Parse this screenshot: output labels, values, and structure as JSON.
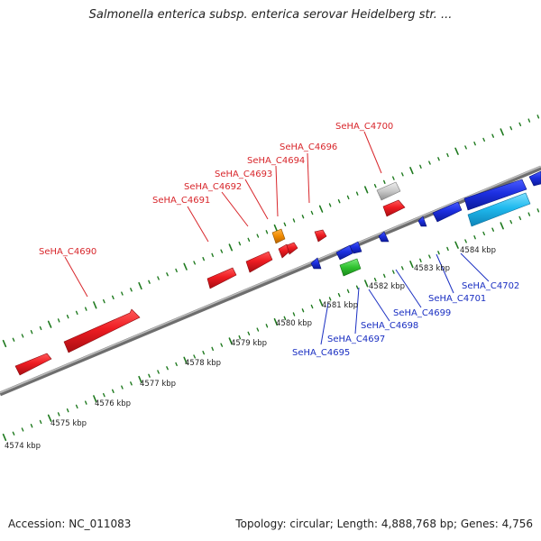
{
  "header": {
    "title": "Salmonella enterica subsp. enterica serovar Heidelberg str. ..."
  },
  "footer": {
    "accession": "Accession: NC_011083",
    "summary": "Topology: circular; Length: 4,888,768 bp; Genes: 4,756"
  },
  "colors": {
    "forward_gene": "#e8191f",
    "reverse_gene": "#1c2fe0",
    "reverse_gene_light": "#1fb9ee",
    "pseudo_gene": "#c8c8c8",
    "orange_gene": "#f08a00",
    "green_gene": "#2fc22f",
    "backbone": "#8c8c8c",
    "tick": "#1f7a1f",
    "label_forward": "#d8262b",
    "label_reverse": "#1a2fc2"
  },
  "scale_labels": [
    "4574 kbp",
    "4575 kbp",
    "4576 kbp",
    "4577 kbp",
    "4578 kbp",
    "4579 kbp",
    "4580 kbp",
    "4581 kbp",
    "4582 kbp",
    "4583 kbp",
    "4584 kbp"
  ],
  "forward_labels": [
    "SeHA_C4690",
    "SeHA_C4691",
    "SeHA_C4692",
    "SeHA_C4693",
    "SeHA_C4694",
    "SeHA_C4696",
    "SeHA_C4700"
  ],
  "reverse_labels": [
    "SeHA_C4695",
    "SeHA_C4697",
    "SeHA_C4698",
    "SeHA_C4699",
    "SeHA_C4701",
    "SeHA_C4702"
  ]
}
